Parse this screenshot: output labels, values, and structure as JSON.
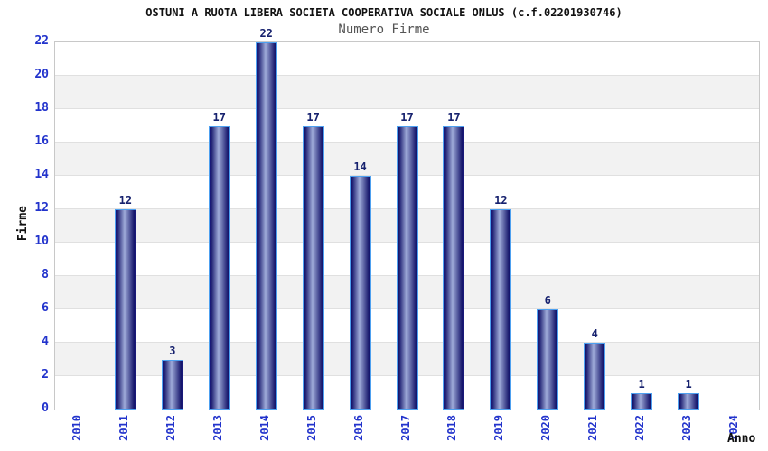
{
  "chart_data": {
    "type": "bar",
    "title": "OSTUNI A RUOTA LIBERA SOCIETA COOPERATIVA SOCIALE ONLUS (c.f.02201930746)",
    "subtitle": "Numero Firme",
    "xlabel": "Anno",
    "ylabel": "Firme",
    "categories": [
      "2010",
      "2011",
      "2012",
      "2013",
      "2014",
      "2015",
      "2016",
      "2017",
      "2018",
      "2019",
      "2020",
      "2021",
      "2022",
      "2023",
      "2024"
    ],
    "values": [
      0,
      12,
      3,
      17,
      22,
      17,
      14,
      17,
      17,
      12,
      6,
      4,
      1,
      1,
      0
    ],
    "ylim": [
      0,
      22
    ],
    "ytick_step": 2,
    "legend": "none",
    "grid": "horizontal-stripes",
    "colors": {
      "bar_edge": "#1b1b7e",
      "bar_dark": "#14146a",
      "bar_center": "#9fabd9",
      "bar_border": "#4da0f0",
      "tick_label": "#2233cc",
      "data_label": "#16216e",
      "title": "#111111",
      "subtitle": "#555555",
      "axis_title": "#111111",
      "stripe": "#f2f2f2",
      "gridline": "#e0e0e0",
      "plot_border": "#c8c8c8",
      "background": "#ffffff"
    }
  }
}
